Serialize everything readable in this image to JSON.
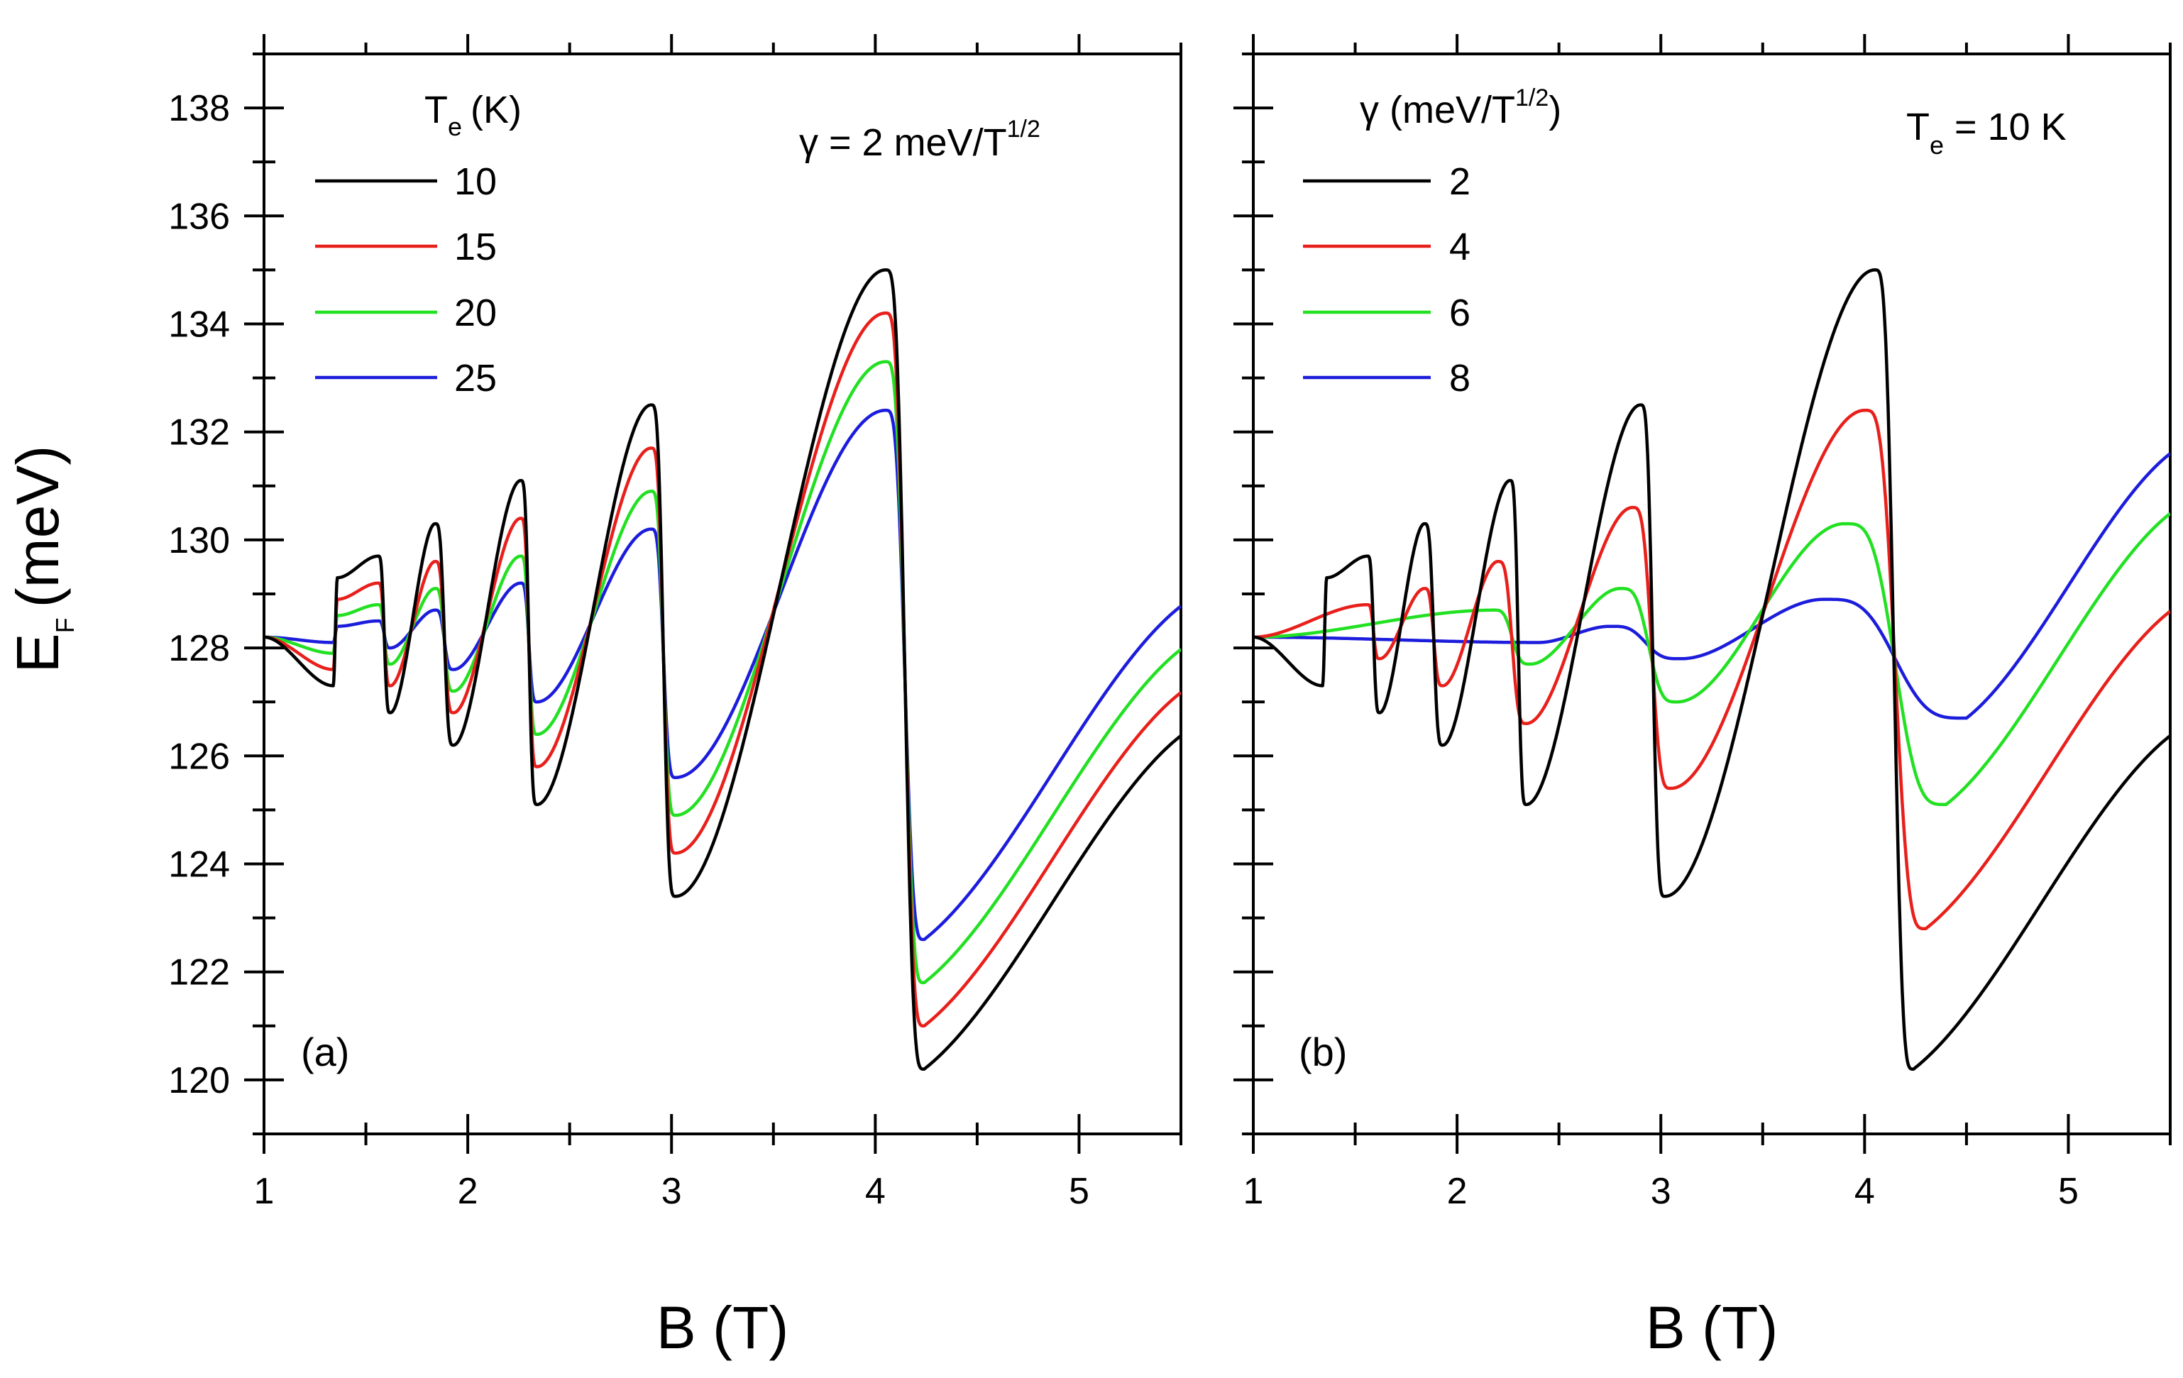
{
  "figure": {
    "y_label": "E",
    "y_label_sub": "F",
    "y_label_unit": "(meV)"
  },
  "chart_data": [
    {
      "type": "line",
      "panel_label": "(a)",
      "xlabel": "B (T)",
      "ylabel": "E_F (meV)",
      "xlim": [
        1,
        5.5
      ],
      "ylim": [
        119,
        139
      ],
      "x_ticks": [
        "1",
        "2",
        "3",
        "4",
        "5"
      ],
      "y_ticks": [
        "120",
        "122",
        "124",
        "126",
        "128",
        "130",
        "132",
        "134",
        "136",
        "138"
      ],
      "annotation": {
        "text": "γ = 2 meV/T",
        "sup": "1/2"
      },
      "legend": {
        "title": "T",
        "title_sub": "e",
        "title_unit": "(K)",
        "placement": "top-left"
      },
      "series": [
        {
          "name": "10",
          "color": "#000000",
          "minima": [
            [
              1.34,
              127.3
            ],
            [
              1.62,
              126.8
            ],
            [
              1.93,
              126.2
            ],
            [
              2.34,
              125.1
            ],
            [
              3.02,
              123.4
            ],
            [
              4.24,
              120.2
            ]
          ],
          "maxima": [
            [
              1.36,
              129.3
            ],
            [
              1.56,
              129.7
            ],
            [
              1.84,
              130.3
            ],
            [
              2.26,
              131.1
            ],
            [
              2.9,
              132.5
            ],
            [
              4.05,
              135.0
            ]
          ]
        },
        {
          "name": "15",
          "color": "#e8201c",
          "minima": [
            [
              1.34,
              127.6
            ],
            [
              1.62,
              127.3
            ],
            [
              1.93,
              126.8
            ],
            [
              2.34,
              125.8
            ],
            [
              3.02,
              124.2
            ],
            [
              4.24,
              121.0
            ]
          ],
          "maxima": [
            [
              1.36,
              128.9
            ],
            [
              1.56,
              129.2
            ],
            [
              1.84,
              129.6
            ],
            [
              2.26,
              130.4
            ],
            [
              2.9,
              131.7
            ],
            [
              4.05,
              134.2
            ]
          ]
        },
        {
          "name": "20",
          "color": "#22e022",
          "minima": [
            [
              1.34,
              127.9
            ],
            [
              1.62,
              127.7
            ],
            [
              1.93,
              127.2
            ],
            [
              2.34,
              126.4
            ],
            [
              3.02,
              124.9
            ],
            [
              4.24,
              121.8
            ]
          ],
          "maxima": [
            [
              1.36,
              128.6
            ],
            [
              1.56,
              128.8
            ],
            [
              1.84,
              129.1
            ],
            [
              2.26,
              129.7
            ],
            [
              2.9,
              130.9
            ],
            [
              4.05,
              133.3
            ]
          ]
        },
        {
          "name": "25",
          "color": "#1c1cdc",
          "minima": [
            [
              1.34,
              128.1
            ],
            [
              1.62,
              128.0
            ],
            [
              1.93,
              127.6
            ],
            [
              2.34,
              127.0
            ],
            [
              3.02,
              125.6
            ],
            [
              4.24,
              122.6
            ]
          ],
          "maxima": [
            [
              1.36,
              128.4
            ],
            [
              1.56,
              128.5
            ],
            [
              1.84,
              128.7
            ],
            [
              2.26,
              129.2
            ],
            [
              2.9,
              130.2
            ],
            [
              4.05,
              132.4
            ]
          ]
        }
      ]
    },
    {
      "type": "line",
      "panel_label": "(b)",
      "xlabel": "B (T)",
      "ylabel": "E_F (meV)",
      "xlim": [
        1,
        5.5
      ],
      "ylim": [
        119,
        139
      ],
      "x_ticks": [
        "1",
        "2",
        "3",
        "4",
        "5"
      ],
      "y_ticks": [
        "120",
        "122",
        "124",
        "126",
        "128",
        "130",
        "132",
        "134",
        "136",
        "138"
      ],
      "annotation": {
        "text": "T",
        "sub": "e",
        "rest": " = 10 K"
      },
      "legend": {
        "title": "γ (meV/T",
        "title_sup": "1/2",
        "title_end": ")",
        "placement": "top-left"
      },
      "series": [
        {
          "name": "2",
          "color": "#000000",
          "minima": [
            [
              1.34,
              127.3
            ],
            [
              1.62,
              126.8
            ],
            [
              1.93,
              126.2
            ],
            [
              2.34,
              125.1
            ],
            [
              3.02,
              123.4
            ],
            [
              4.24,
              120.2
            ]
          ],
          "maxima": [
            [
              1.36,
              129.3
            ],
            [
              1.56,
              129.7
            ],
            [
              1.84,
              130.3
            ],
            [
              2.26,
              131.1
            ],
            [
              2.9,
              132.5
            ],
            [
              4.05,
              135.0
            ]
          ]
        },
        {
          "name": "4",
          "color": "#e8201c",
          "minima": [
            [
              1.62,
              127.8
            ],
            [
              1.93,
              127.3
            ],
            [
              2.34,
              126.6
            ],
            [
              3.05,
              125.4
            ],
            [
              4.3,
              122.8
            ]
          ],
          "maxima": [
            [
              1.56,
              128.8
            ],
            [
              1.84,
              129.1
            ],
            [
              2.2,
              129.6
            ],
            [
              2.86,
              130.6
            ],
            [
              4.0,
              132.4
            ]
          ]
        },
        {
          "name": "6",
          "color": "#22e022",
          "minima": [
            [
              2.36,
              127.7
            ],
            [
              3.08,
              127.0
            ],
            [
              4.4,
              125.1
            ]
          ],
          "maxima": [
            [
              2.18,
              128.7
            ],
            [
              2.8,
              129.1
            ],
            [
              3.9,
              130.3
            ]
          ]
        },
        {
          "name": "8",
          "color": "#1c1cdc",
          "minima": [
            [
              2.4,
              128.1
            ],
            [
              3.1,
              127.8
            ],
            [
              4.5,
              126.7
            ]
          ],
          "maxima": [
            [
              2.75,
              128.4
            ],
            [
              3.8,
              128.9
            ]
          ]
        }
      ]
    }
  ]
}
